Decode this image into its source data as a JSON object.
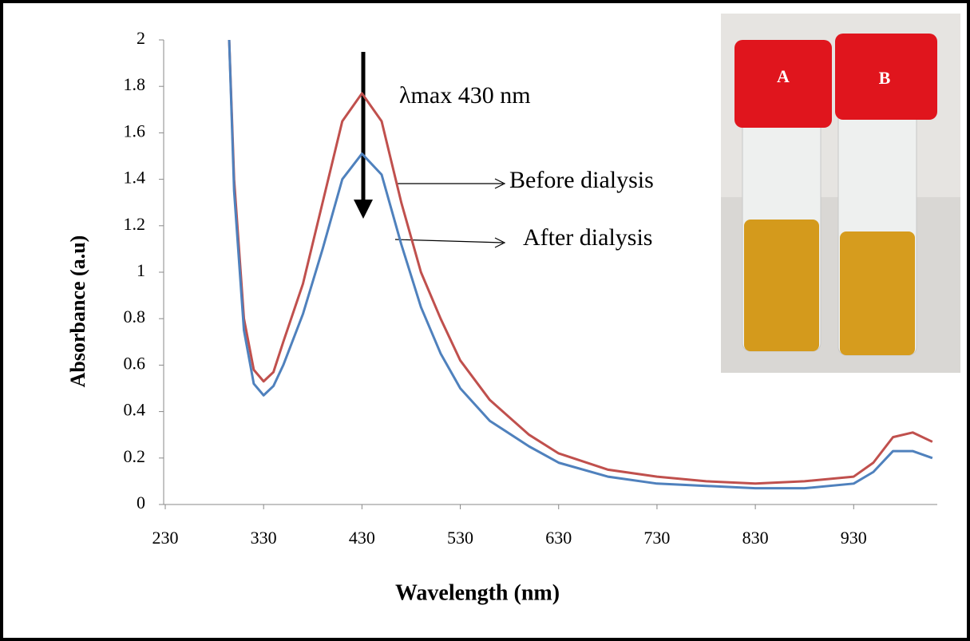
{
  "chart_data": {
    "type": "line",
    "annotation": "λmax 430 nm",
    "x_label": "Wavelength (nm)",
    "y_label": "Absorbance (a.u)",
    "x": [
      295,
      300,
      310,
      320,
      330,
      340,
      350,
      370,
      390,
      410,
      430,
      450,
      470,
      490,
      510,
      530,
      560,
      600,
      630,
      680,
      730,
      780,
      830,
      880,
      930,
      950,
      970,
      990,
      1010
    ],
    "series": [
      {
        "name": "Before dialysis",
        "color": "#c0504d",
        "values": [
          2.0,
          1.4,
          0.8,
          0.58,
          0.53,
          0.57,
          0.7,
          0.95,
          1.3,
          1.65,
          1.77,
          1.65,
          1.3,
          1.0,
          0.8,
          0.62,
          0.45,
          0.3,
          0.22,
          0.15,
          0.12,
          0.1,
          0.09,
          0.1,
          0.12,
          0.18,
          0.29,
          0.31,
          0.27
        ]
      },
      {
        "name": "After dialysis",
        "color": "#4f81bd",
        "values": [
          2.0,
          1.35,
          0.75,
          0.52,
          0.47,
          0.51,
          0.6,
          0.82,
          1.1,
          1.4,
          1.51,
          1.42,
          1.12,
          0.85,
          0.65,
          0.5,
          0.36,
          0.25,
          0.18,
          0.12,
          0.09,
          0.08,
          0.07,
          0.07,
          0.09,
          0.14,
          0.23,
          0.23,
          0.2
        ]
      }
    ],
    "xlim": [
      230,
      1015
    ],
    "xticks": [
      230,
      330,
      430,
      530,
      630,
      730,
      830,
      930
    ],
    "ylim": [
      0,
      2
    ],
    "yticks": [
      0,
      0.2,
      0.4,
      0.6,
      0.8,
      1,
      1.2,
      1.4,
      1.6,
      1.8,
      2
    ],
    "inset_labels": [
      "A",
      "B"
    ]
  }
}
